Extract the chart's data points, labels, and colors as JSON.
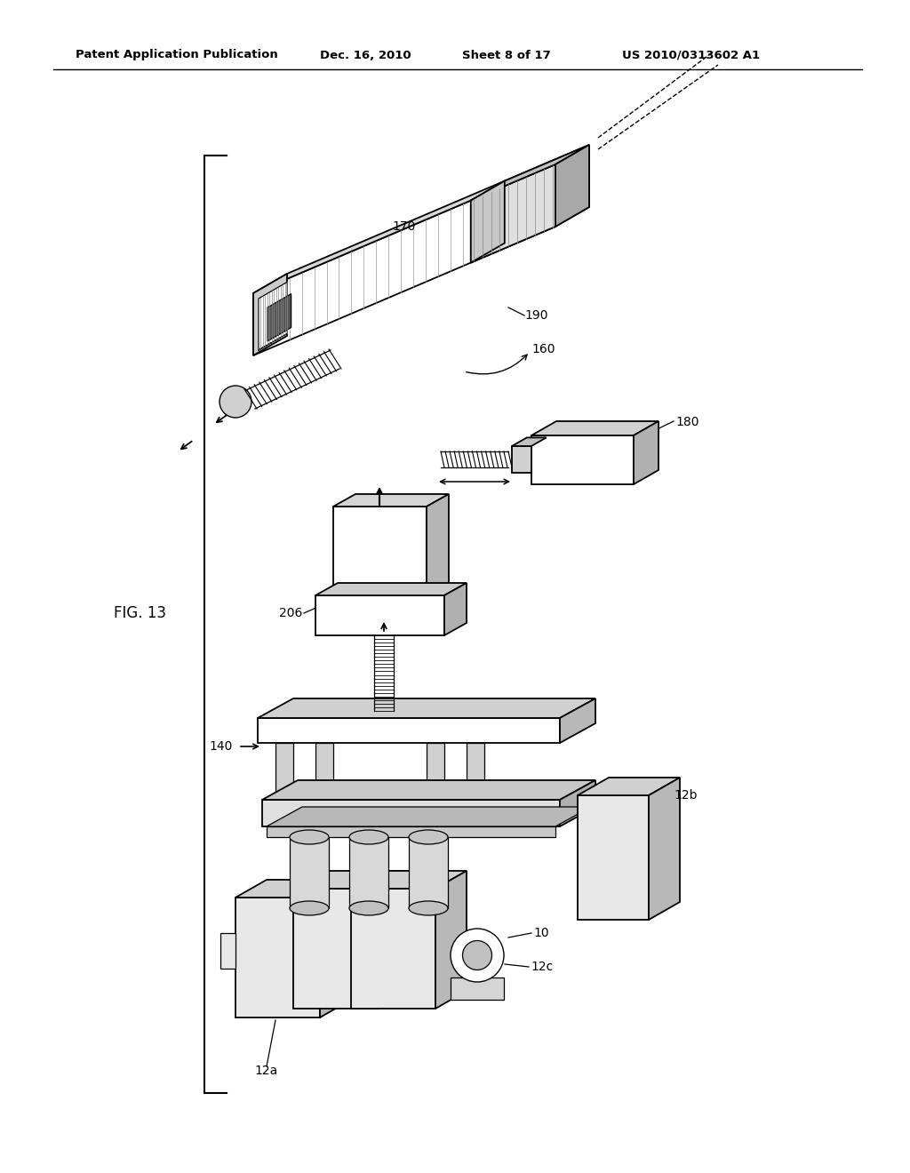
{
  "bg_color": "#ffffff",
  "header_text": "Patent Application Publication",
  "header_date": "Dec. 16, 2010",
  "header_sheet": "Sheet 8 of 17",
  "header_patent": "US 2010/0313602 A1",
  "fig_label": "FIG. 13"
}
